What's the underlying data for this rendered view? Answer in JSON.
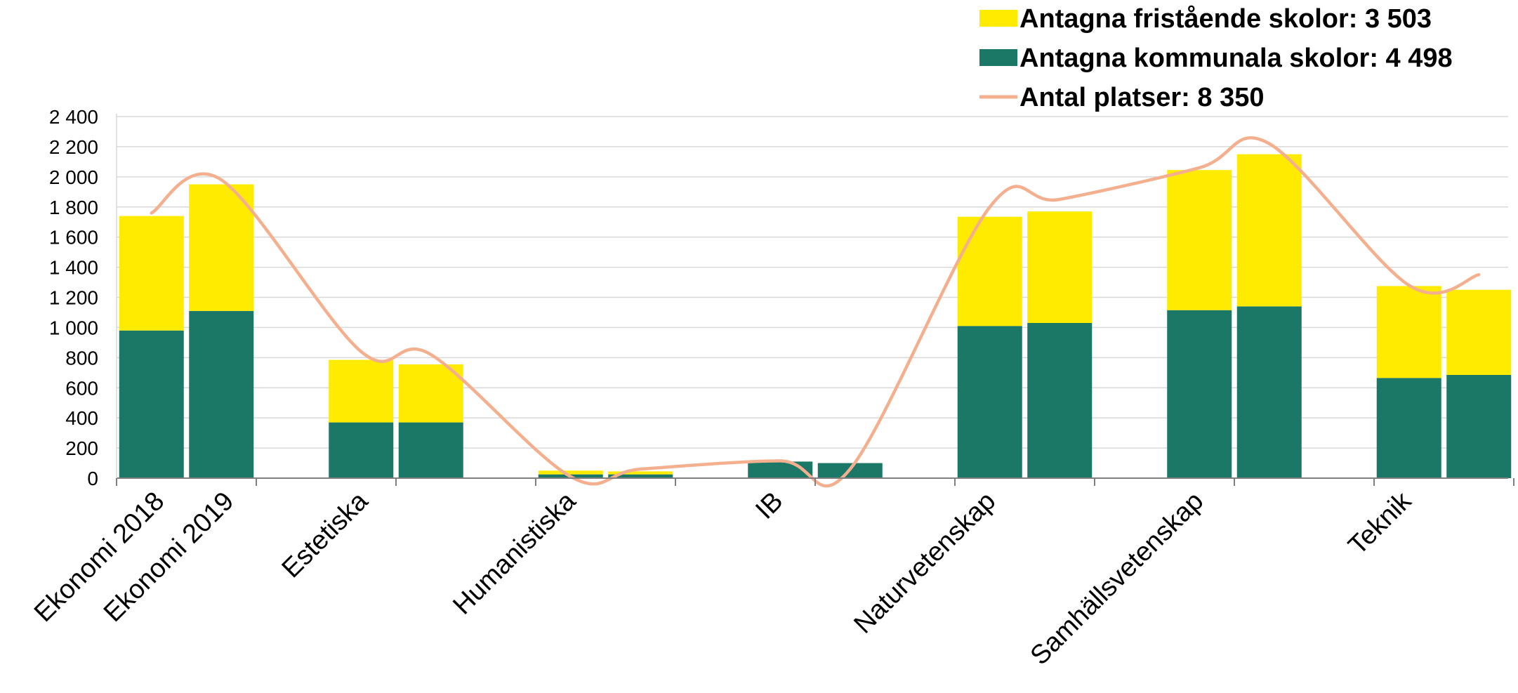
{
  "chart_data": {
    "type": "bar",
    "stacked": true,
    "ylim": [
      0,
      2400
    ],
    "yticks": [
      0,
      200,
      400,
      600,
      800,
      1000,
      1200,
      1400,
      1600,
      1800,
      2000,
      2200,
      2400
    ],
    "ytick_labels": [
      "0",
      "200",
      "400",
      "600",
      "800",
      "1 000",
      "1 200",
      "1 400",
      "1 600",
      "1 800",
      "2 000",
      "2 200",
      "2 400"
    ],
    "grid": true,
    "legend_position": "top-right",
    "groups": [
      {
        "label": "Ekonomi 2018",
        "bars": [
          1
        ]
      },
      {
        "label": "Ekonomi 2019",
        "bars": [
          1
        ]
      },
      {
        "label": "Estetiska",
        "bars": [
          2
        ]
      },
      {
        "label": "Humanistiska",
        "bars": [
          2
        ]
      },
      {
        "label": "IB",
        "bars": [
          2
        ]
      },
      {
        "label": "Naturvetenskap",
        "bars": [
          2
        ]
      },
      {
        "label": "Samhällsvetenskap",
        "bars": [
          2
        ]
      },
      {
        "label": "Teknik",
        "bars": [
          2
        ]
      }
    ],
    "bars": [
      {
        "group": 0,
        "kommunala": 980,
        "fristaende": 760,
        "platser": 1760
      },
      {
        "group": 1,
        "kommunala": 1110,
        "fristaende": 840,
        "platser": 1980
      },
      {
        "group": 2,
        "kommunala": 370,
        "fristaende": 415,
        "platser": 840
      },
      {
        "group": 2,
        "kommunala": 370,
        "fristaende": 385,
        "platser": 820
      },
      {
        "group": 3,
        "kommunala": 25,
        "fristaende": 25,
        "platser": 10
      },
      {
        "group": 3,
        "kommunala": 25,
        "fristaende": 20,
        "platser": 60
      },
      {
        "group": 4,
        "kommunala": 110,
        "fristaende": 0,
        "platser": 115
      },
      {
        "group": 4,
        "kommunala": 100,
        "fristaende": 0,
        "platser": 60
      },
      {
        "group": 5,
        "kommunala": 1010,
        "fristaende": 725,
        "platser": 1800
      },
      {
        "group": 5,
        "kommunala": 1030,
        "fristaende": 740,
        "platser": 1850
      },
      {
        "group": 6,
        "kommunala": 1115,
        "fristaende": 930,
        "platser": 2060
      },
      {
        "group": 6,
        "kommunala": 1140,
        "fristaende": 1010,
        "platser": 2220
      },
      {
        "group": 7,
        "kommunala": 665,
        "fristaende": 610,
        "platser": 1280
      },
      {
        "group": 7,
        "kommunala": 685,
        "fristaende": 565,
        "platser": 1350
      }
    ],
    "series": [
      {
        "key": "fristaende",
        "name": "Antagna fristående skolor: 3 503",
        "color": "#FFEB00",
        "kind": "bar"
      },
      {
        "key": "kommunala",
        "name": "Antagna kommunala skolor: 4 498",
        "color": "#1B7766",
        "kind": "bar"
      },
      {
        "key": "platser",
        "name": "Antal platser: 8 350",
        "color": "#F4B08E",
        "kind": "line"
      }
    ]
  }
}
